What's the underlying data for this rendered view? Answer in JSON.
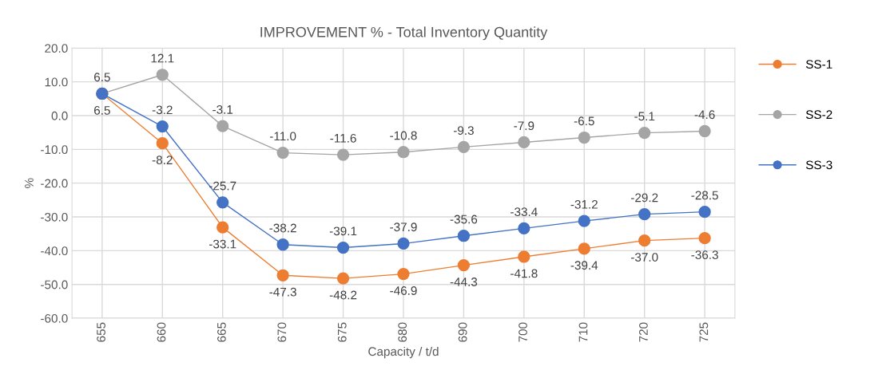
{
  "chart_data": {
    "type": "line",
    "title": "IMPROVEMENT % - Total Inventory Quantity",
    "xlabel": "Capacity / t/d",
    "ylabel": "%",
    "categories": [
      "655",
      "660",
      "665",
      "670",
      "675",
      "680",
      "690",
      "700",
      "710",
      "720",
      "725"
    ],
    "series": [
      {
        "name": "SS-1",
        "color": "#ed7d31",
        "values": [
          6.5,
          -8.2,
          -33.1,
          -47.3,
          -48.2,
          -46.9,
          -44.3,
          -41.8,
          -39.4,
          -37.0,
          -36.3
        ],
        "value_labels": [
          null,
          "-8.2",
          "-33.1",
          "-47.3",
          "-48.2",
          "-46.9",
          "-44.3",
          "-41.8",
          "-39.4",
          "-37.0",
          "-36.3"
        ]
      },
      {
        "name": "SS-2",
        "color": "#a5a5a5",
        "values": [
          6.5,
          12.1,
          -3.1,
          -11.0,
          -11.6,
          -10.8,
          -9.3,
          -7.9,
          -6.5,
          -5.1,
          -4.6
        ],
        "value_labels": [
          "6.5",
          "12.1",
          "-3.1",
          "-11.0",
          "-11.6",
          "-10.8",
          "-9.3",
          "-7.9",
          "-6.5",
          "-5.1",
          "-4.6"
        ]
      },
      {
        "name": "SS-3",
        "color": "#4472c4",
        "values": [
          6.5,
          -3.2,
          -25.7,
          -38.2,
          -39.1,
          -37.9,
          -35.6,
          -33.4,
          -31.2,
          -29.2,
          -28.5
        ],
        "value_labels": [
          "6.5",
          "-3.2",
          "-25.7",
          "-38.2",
          "-39.1",
          "-37.9",
          "-35.6",
          "-33.4",
          "-31.2",
          "-29.2",
          "-28.5"
        ]
      }
    ],
    "ylim": [
      -60,
      20
    ],
    "yticks": [
      {
        "value": -60,
        "label": "-60.0"
      },
      {
        "value": -50,
        "label": "-50.0"
      },
      {
        "value": -40,
        "label": "-40.0"
      },
      {
        "value": -30,
        "label": "-30.0"
      },
      {
        "value": -20,
        "label": "-20.0"
      },
      {
        "value": -10,
        "label": "-10.0"
      },
      {
        "value": 0,
        "label": "0.0"
      },
      {
        "value": 10,
        "label": "10.0"
      },
      {
        "value": 20,
        "label": "20.0"
      }
    ],
    "grid": true,
    "legend": "right",
    "marker": "circle",
    "line_style": "solid"
  }
}
